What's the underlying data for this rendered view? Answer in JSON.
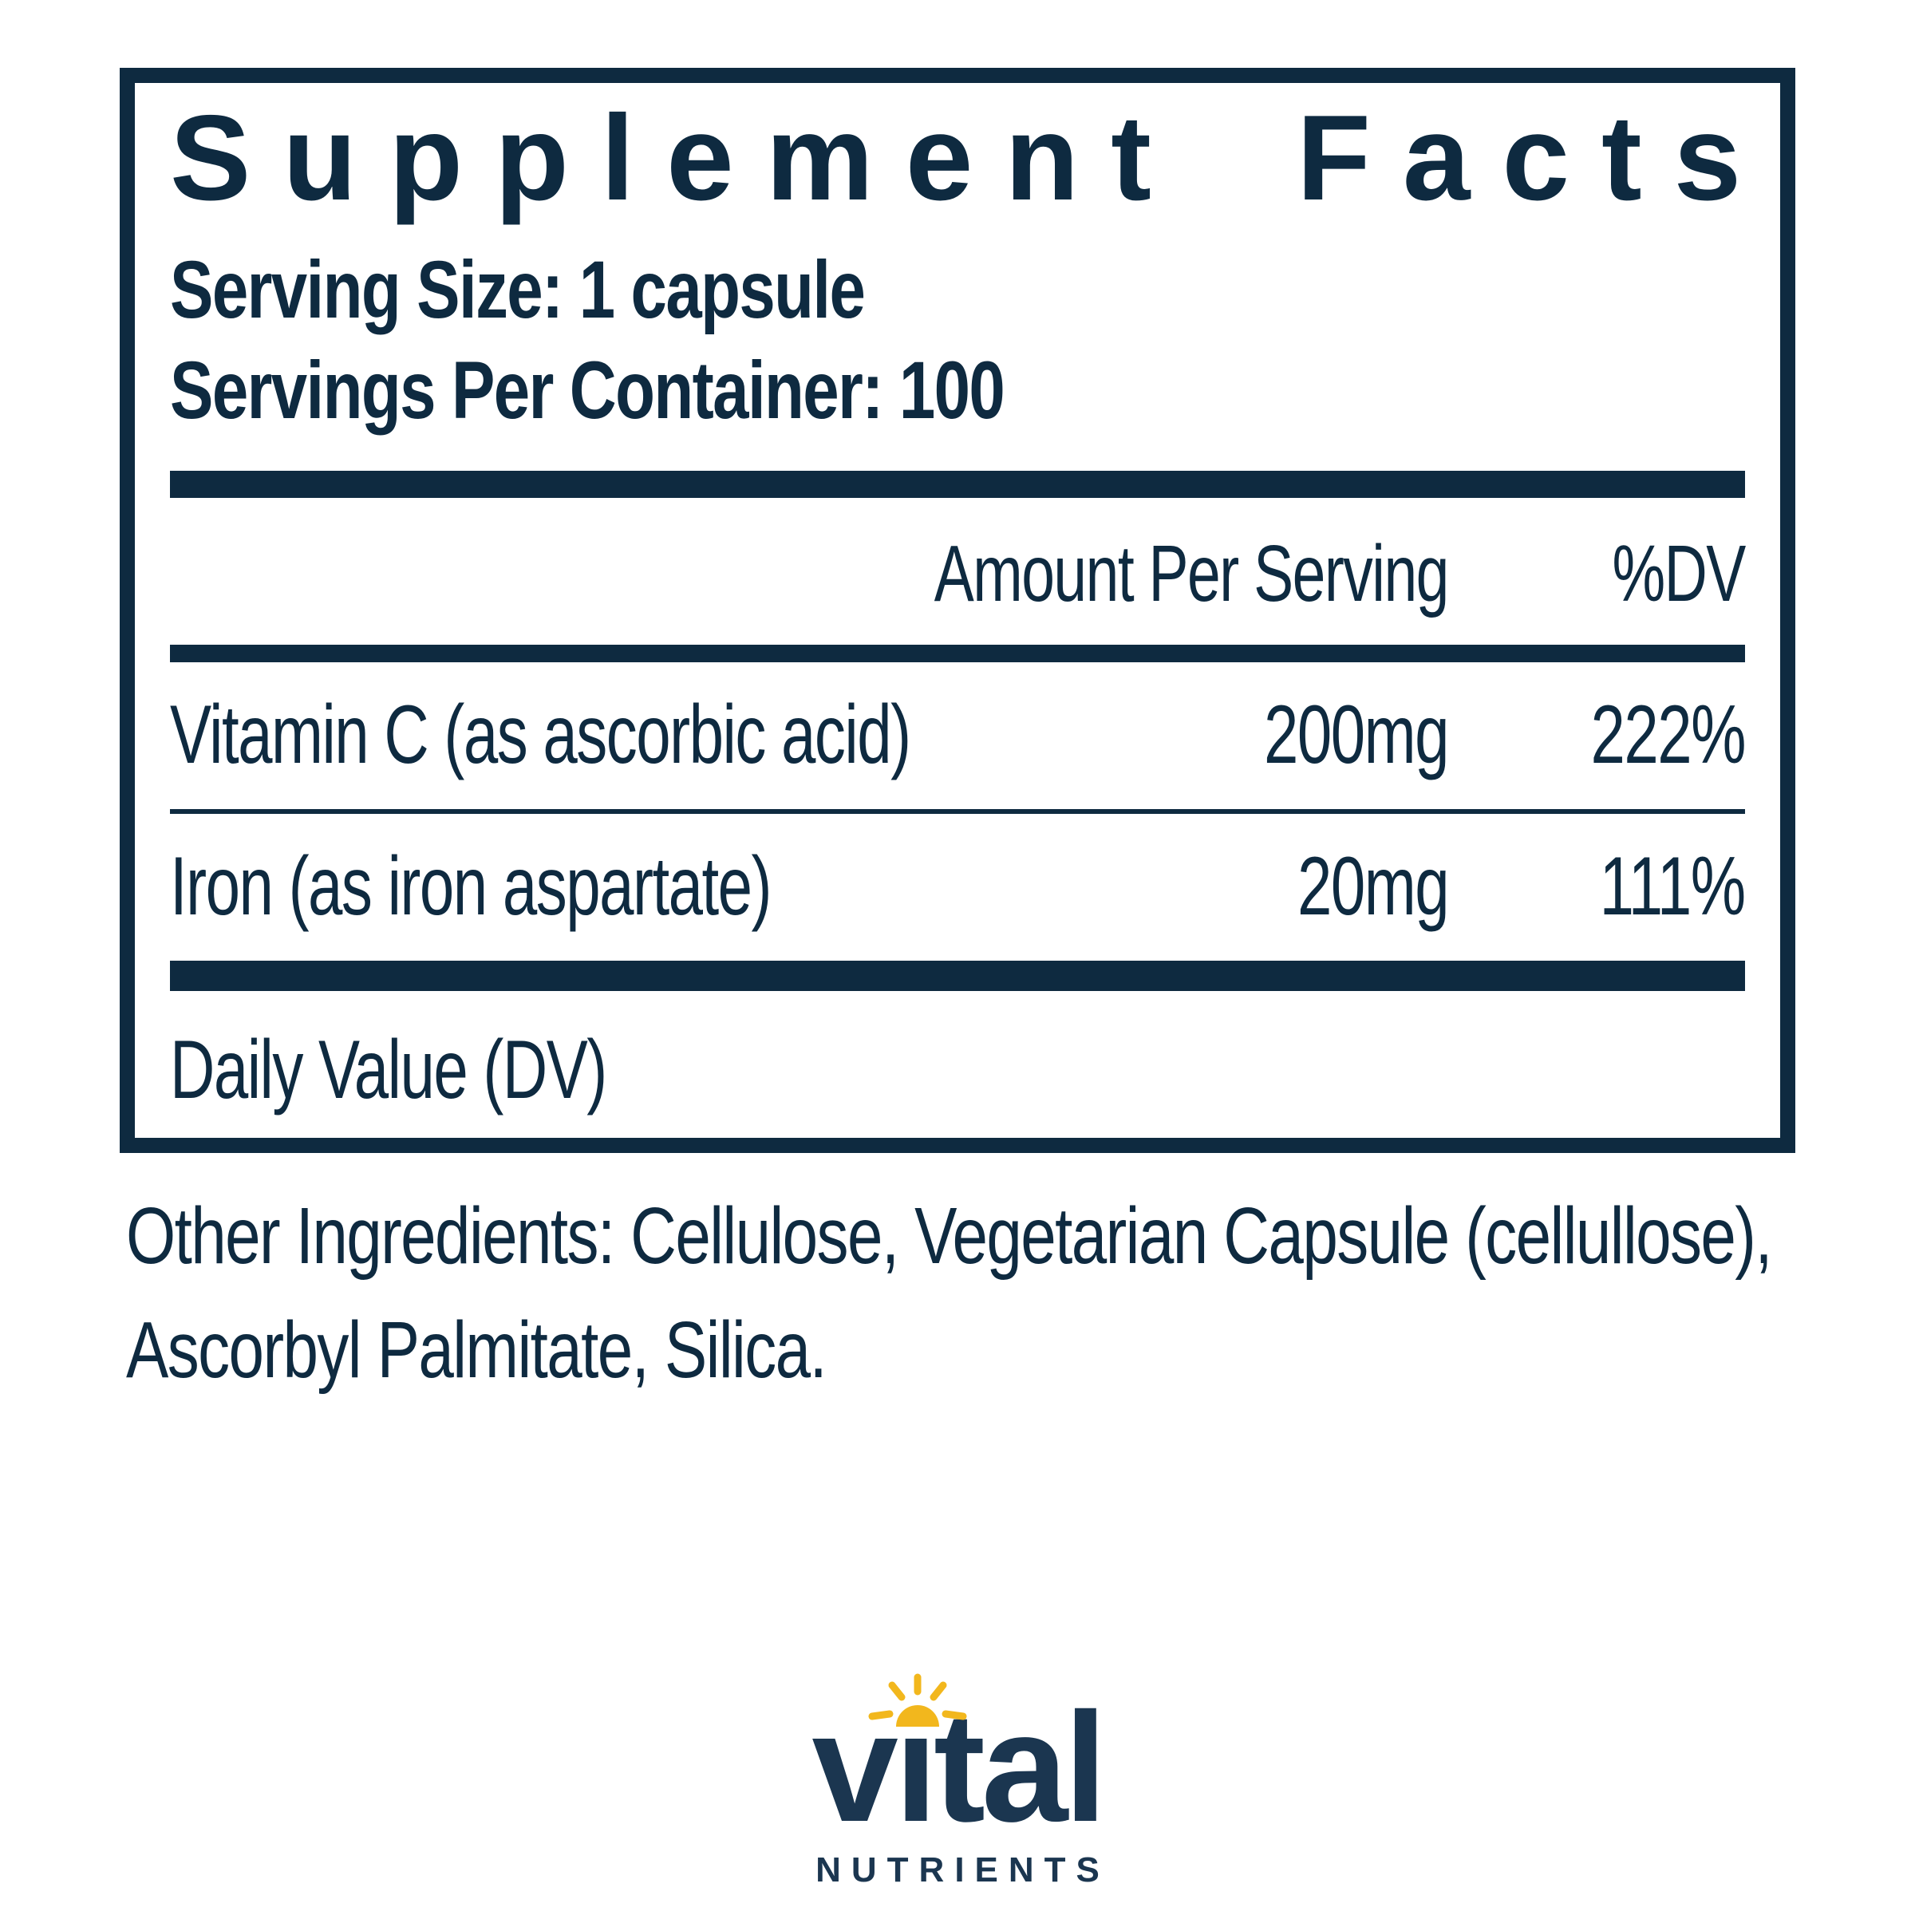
{
  "panel": {
    "title": "Supplement Facts",
    "serving_size": "Serving Size: 1 capsule",
    "servings_per_container": "Servings Per Container: 100",
    "columns": {
      "amount": "Amount Per Serving",
      "dv": "%DV"
    },
    "rows": [
      {
        "name": "Vitamin C (as ascorbic acid)",
        "amount": "200mg",
        "dv": "222%"
      },
      {
        "name": "Iron (as iron aspartate)",
        "amount": "20mg",
        "dv": "111%"
      }
    ],
    "footnote": "Daily Value (DV)"
  },
  "other_ingredients": {
    "line1": "Other Ingredients: Cellulose, Vegetarian Capsule (cellullose),",
    "line2": "Ascorbyl Palmitate, Silica."
  },
  "logo": {
    "wordmark": "vital",
    "subtext": "NUTRIENTS"
  },
  "colors": {
    "navy": "#0e2a40",
    "logo_navy": "#1b3650",
    "gold": "#f2b71d"
  }
}
